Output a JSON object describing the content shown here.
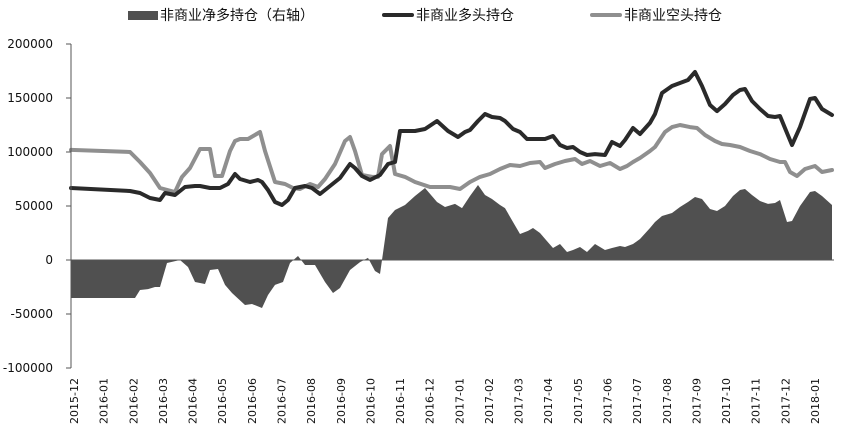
{
  "legend": {
    "net": "非商业净多持仓（右轴）",
    "long": "非商业多头持仓",
    "short": "非商业空头持仓"
  },
  "colors": {
    "net": "#505050",
    "long": "#2a2a2a",
    "short": "#8f8f8f",
    "axis": "#555555"
  },
  "chart_data": {
    "type": "line",
    "title": "",
    "xlabel": "",
    "ylabel": "",
    "ylim": [
      -100000,
      200000
    ],
    "yticks": [
      200000,
      150000,
      100000,
      50000,
      0,
      -50000,
      -100000
    ],
    "ytick_labels": [
      "200000",
      "150000",
      "100000",
      "50000",
      "0",
      "-50000",
      "-100000"
    ],
    "categories": [
      "2015-12",
      "2016-01",
      "2016-02",
      "2016-03",
      "2016-04",
      "2016-05",
      "2016-06",
      "2016-07",
      "2016-08",
      "2016-09",
      "2016-10",
      "2016-11",
      "2016-12",
      "2017-01",
      "2017-02",
      "2017-03",
      "2017-04",
      "2017-05",
      "2017-06",
      "2017-07",
      "2017-08",
      "2017-09",
      "2017-10",
      "2017-11",
      "2017-12",
      "2018-01"
    ],
    "legend_position": "top",
    "grid": false,
    "series": [
      {
        "name": "非商业净多持仓（右轴）",
        "type": "area",
        "points": [
          [
            71,
            -35200
          ],
          [
            100,
            -35200
          ],
          [
            135,
            -35200
          ],
          [
            140,
            -27800
          ],
          [
            148,
            -26900
          ],
          [
            155,
            -25000
          ],
          [
            160,
            -25000
          ],
          [
            167,
            -2800
          ],
          [
            180,
            0
          ],
          [
            188,
            -6500
          ],
          [
            195,
            -20400
          ],
          [
            205,
            -22200
          ],
          [
            210,
            -9300
          ],
          [
            218,
            -8300
          ],
          [
            225,
            -23100
          ],
          [
            232,
            -30600
          ],
          [
            245,
            -41700
          ],
          [
            252,
            -40700
          ],
          [
            262,
            -44400
          ],
          [
            268,
            -32400
          ],
          [
            275,
            -23100
          ],
          [
            283,
            -20400
          ],
          [
            290,
            -2800
          ],
          [
            298,
            3700
          ],
          [
            305,
            -4600
          ],
          [
            315,
            -4600
          ],
          [
            325,
            -20400
          ],
          [
            333,
            -30600
          ],
          [
            340,
            -25900
          ],
          [
            350,
            -9300
          ],
          [
            360,
            -1900
          ],
          [
            368,
            1900
          ],
          [
            375,
            -10200
          ],
          [
            380,
            -13000
          ],
          [
            388,
            38900
          ],
          [
            395,
            46300
          ],
          [
            405,
            50900
          ],
          [
            415,
            59300
          ],
          [
            425,
            66700
          ],
          [
            437,
            53700
          ],
          [
            445,
            49100
          ],
          [
            455,
            51900
          ],
          [
            462,
            48100
          ],
          [
            470,
            59300
          ],
          [
            478,
            69400
          ],
          [
            485,
            60200
          ],
          [
            492,
            56500
          ],
          [
            500,
            50900
          ],
          [
            505,
            48100
          ],
          [
            513,
            35200
          ],
          [
            520,
            24100
          ],
          [
            528,
            26900
          ],
          [
            533,
            29600
          ],
          [
            540,
            25000
          ],
          [
            546,
            18500
          ],
          [
            553,
            11100
          ],
          [
            560,
            14800
          ],
          [
            567,
            7400
          ],
          [
            573,
            9300
          ],
          [
            580,
            12000
          ],
          [
            587,
            7400
          ],
          [
            595,
            14800
          ],
          [
            605,
            9300
          ],
          [
            612,
            11100
          ],
          [
            620,
            13000
          ],
          [
            625,
            12000
          ],
          [
            633,
            14800
          ],
          [
            640,
            19400
          ],
          [
            650,
            29600
          ],
          [
            655,
            35200
          ],
          [
            662,
            40700
          ],
          [
            672,
            43500
          ],
          [
            680,
            49100
          ],
          [
            688,
            53700
          ],
          [
            695,
            58300
          ],
          [
            702,
            56500
          ],
          [
            710,
            47200
          ],
          [
            717,
            45400
          ],
          [
            725,
            50000
          ],
          [
            733,
            59300
          ],
          [
            740,
            64800
          ],
          [
            745,
            65700
          ],
          [
            752,
            60200
          ],
          [
            760,
            54600
          ],
          [
            768,
            51900
          ],
          [
            775,
            52800
          ],
          [
            780,
            55600
          ],
          [
            787,
            35200
          ],
          [
            792,
            36100
          ],
          [
            800,
            50000
          ],
          [
            810,
            63000
          ],
          [
            815,
            63900
          ],
          [
            822,
            59300
          ],
          [
            832,
            50900
          ]
        ]
      },
      {
        "name": "非商业多头持仓",
        "type": "line",
        "points": [
          [
            71,
            66700
          ],
          [
            130,
            63900
          ],
          [
            140,
            62000
          ],
          [
            150,
            57400
          ],
          [
            160,
            55600
          ],
          [
            165,
            62000
          ],
          [
            175,
            60200
          ],
          [
            185,
            67600
          ],
          [
            195,
            68500
          ],
          [
            200,
            68500
          ],
          [
            210,
            66700
          ],
          [
            220,
            66700
          ],
          [
            228,
            70400
          ],
          [
            235,
            79600
          ],
          [
            240,
            75000
          ],
          [
            250,
            72200
          ],
          [
            258,
            74100
          ],
          [
            262,
            72200
          ],
          [
            268,
            64800
          ],
          [
            275,
            53700
          ],
          [
            282,
            50900
          ],
          [
            288,
            55600
          ],
          [
            295,
            66700
          ],
          [
            305,
            68500
          ],
          [
            312,
            66700
          ],
          [
            320,
            61100
          ],
          [
            330,
            68500
          ],
          [
            340,
            75900
          ],
          [
            350,
            88900
          ],
          [
            355,
            85200
          ],
          [
            362,
            77800
          ],
          [
            370,
            74100
          ],
          [
            380,
            78700
          ],
          [
            388,
            88900
          ],
          [
            395,
            90700
          ],
          [
            400,
            119400
          ],
          [
            415,
            119400
          ],
          [
            425,
            121300
          ],
          [
            437,
            128700
          ],
          [
            448,
            119400
          ],
          [
            458,
            113900
          ],
          [
            465,
            118500
          ],
          [
            470,
            120400
          ],
          [
            478,
            128700
          ],
          [
            485,
            135200
          ],
          [
            492,
            132400
          ],
          [
            500,
            131500
          ],
          [
            505,
            128700
          ],
          [
            513,
            121300
          ],
          [
            520,
            118500
          ],
          [
            527,
            112000
          ],
          [
            533,
            112000
          ],
          [
            545,
            112000
          ],
          [
            553,
            114800
          ],
          [
            560,
            106500
          ],
          [
            567,
            103700
          ],
          [
            573,
            104600
          ],
          [
            580,
            100000
          ],
          [
            587,
            97200
          ],
          [
            595,
            98100
          ],
          [
            605,
            97200
          ],
          [
            612,
            109300
          ],
          [
            620,
            105600
          ],
          [
            625,
            111100
          ],
          [
            633,
            122200
          ],
          [
            640,
            116700
          ],
          [
            650,
            126900
          ],
          [
            655,
            135200
          ],
          [
            662,
            154600
          ],
          [
            672,
            161100
          ],
          [
            680,
            163900
          ],
          [
            688,
            166700
          ],
          [
            695,
            174100
          ],
          [
            702,
            161100
          ],
          [
            710,
            143500
          ],
          [
            717,
            137900
          ],
          [
            725,
            144400
          ],
          [
            733,
            152800
          ],
          [
            740,
            157400
          ],
          [
            745,
            158300
          ],
          [
            752,
            147200
          ],
          [
            760,
            139800
          ],
          [
            768,
            133300
          ],
          [
            775,
            132400
          ],
          [
            780,
            133300
          ],
          [
            787,
            117600
          ],
          [
            792,
            106500
          ],
          [
            800,
            123100
          ],
          [
            810,
            149100
          ],
          [
            815,
            150000
          ],
          [
            822,
            139800
          ],
          [
            832,
            134300
          ]
        ]
      },
      {
        "name": "非商业空头持仓",
        "type": "line",
        "points": [
          [
            71,
            101900
          ],
          [
            130,
            100000
          ],
          [
            140,
            90700
          ],
          [
            150,
            80600
          ],
          [
            160,
            66700
          ],
          [
            175,
            63000
          ],
          [
            182,
            76900
          ],
          [
            190,
            85200
          ],
          [
            200,
            102800
          ],
          [
            210,
            102800
          ],
          [
            215,
            77800
          ],
          [
            222,
            77800
          ],
          [
            230,
            100900
          ],
          [
            235,
            110200
          ],
          [
            240,
            112000
          ],
          [
            248,
            112000
          ],
          [
            260,
            118500
          ],
          [
            265,
            100900
          ],
          [
            275,
            72200
          ],
          [
            285,
            70400
          ],
          [
            293,
            66700
          ],
          [
            300,
            65700
          ],
          [
            310,
            70400
          ],
          [
            318,
            67600
          ],
          [
            325,
            75000
          ],
          [
            335,
            88900
          ],
          [
            345,
            110200
          ],
          [
            350,
            113900
          ],
          [
            355,
            100900
          ],
          [
            362,
            78700
          ],
          [
            372,
            76900
          ],
          [
            378,
            76900
          ],
          [
            382,
            98100
          ],
          [
            390,
            105600
          ],
          [
            395,
            79600
          ],
          [
            405,
            76900
          ],
          [
            415,
            72200
          ],
          [
            430,
            67600
          ],
          [
            450,
            67600
          ],
          [
            460,
            65700
          ],
          [
            470,
            72200
          ],
          [
            480,
            76900
          ],
          [
            490,
            79600
          ],
          [
            500,
            84300
          ],
          [
            510,
            88000
          ],
          [
            520,
            87000
          ],
          [
            530,
            89800
          ],
          [
            540,
            90700
          ],
          [
            545,
            85200
          ],
          [
            555,
            88900
          ],
          [
            565,
            91700
          ],
          [
            575,
            93500
          ],
          [
            582,
            88900
          ],
          [
            590,
            91700
          ],
          [
            600,
            87000
          ],
          [
            610,
            89800
          ],
          [
            620,
            84300
          ],
          [
            627,
            87000
          ],
          [
            633,
            90700
          ],
          [
            640,
            94400
          ],
          [
            650,
            100900
          ],
          [
            655,
            104600
          ],
          [
            665,
            118500
          ],
          [
            672,
            123100
          ],
          [
            680,
            125000
          ],
          [
            690,
            123100
          ],
          [
            697,
            122200
          ],
          [
            705,
            115700
          ],
          [
            715,
            110200
          ],
          [
            722,
            107400
          ],
          [
            730,
            106500
          ],
          [
            740,
            104600
          ],
          [
            750,
            100900
          ],
          [
            760,
            98100
          ],
          [
            770,
            93500
          ],
          [
            780,
            90700
          ],
          [
            785,
            90700
          ],
          [
            790,
            81500
          ],
          [
            797,
            77800
          ],
          [
            805,
            84300
          ],
          [
            815,
            87000
          ],
          [
            822,
            81500
          ],
          [
            832,
            83300
          ]
        ]
      }
    ]
  }
}
